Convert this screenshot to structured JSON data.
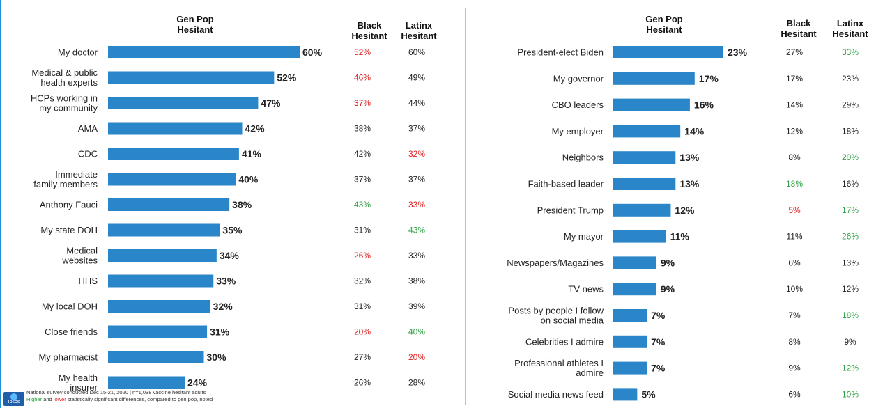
{
  "colors": {
    "bar": "#2a86c8",
    "higher": "#2ea043",
    "lower": "#e02020",
    "neutral": "#222222"
  },
  "headers": {
    "left": {
      "genpop": [
        "Gen Pop",
        "Hesitant"
      ],
      "black": [
        "Black",
        "Hesitant"
      ],
      "latinx": [
        "Latinx",
        "Hesitant"
      ]
    },
    "right": {
      "genpop": [
        "Gen Pop",
        "Hesitant"
      ],
      "black": [
        "Black",
        "Hesitant"
      ],
      "latinx": [
        "Latinx",
        "Hesitant"
      ]
    }
  },
  "footer": {
    "line1": "National survey conducted Dec 15-21, 2020 | n=1,038 vaccine hesitant adults",
    "higher_word": "Higher",
    "and_word": " and ",
    "lower_word": "lower",
    "line2_rest": " statistically significant differences, compared to gen pop, noted",
    "logo_text": "Ipsos"
  },
  "chart_data": [
    {
      "type": "bar",
      "orientation": "horizontal",
      "xlim": [
        0,
        60
      ],
      "categories": [
        [
          "My doctor"
        ],
        [
          "Medical & public",
          "health experts"
        ],
        [
          "HCPs working in",
          "my community"
        ],
        [
          "AMA"
        ],
        [
          "CDC"
        ],
        [
          "Immediate",
          "family members"
        ],
        [
          "Anthony Fauci"
        ],
        [
          "My state DOH"
        ],
        [
          "Medical",
          "websites"
        ],
        [
          "HHS"
        ],
        [
          "My local DOH"
        ],
        [
          "Close friends"
        ],
        [
          "My pharmacist"
        ],
        [
          "My health",
          "insurer"
        ]
      ],
      "series": [
        {
          "name": "Gen Pop Hesitant",
          "values": [
            60,
            52,
            47,
            42,
            41,
            40,
            38,
            35,
            34,
            33,
            32,
            31,
            30,
            24
          ]
        }
      ],
      "columns": {
        "black": {
          "values": [
            52,
            46,
            37,
            38,
            42,
            37,
            43,
            31,
            26,
            32,
            31,
            20,
            27,
            26
          ],
          "status": [
            "lower",
            "lower",
            "lower",
            "neutral",
            "neutral",
            "neutral",
            "higher",
            "neutral",
            "lower",
            "neutral",
            "neutral",
            "lower",
            "neutral",
            "neutral"
          ]
        },
        "latinx": {
          "values": [
            60,
            49,
            44,
            37,
            32,
            37,
            33,
            43,
            33,
            38,
            39,
            40,
            20,
            28
          ],
          "status": [
            "neutral",
            "neutral",
            "neutral",
            "neutral",
            "lower",
            "neutral",
            "lower",
            "higher",
            "neutral",
            "neutral",
            "neutral",
            "higher",
            "lower",
            "neutral"
          ]
        }
      }
    },
    {
      "type": "bar",
      "orientation": "horizontal",
      "xlim": [
        0,
        23
      ],
      "categories": [
        [
          "President-elect Biden"
        ],
        [
          "My governor"
        ],
        [
          "CBO leaders"
        ],
        [
          "My employer"
        ],
        [
          "Neighbors"
        ],
        [
          "Faith-based leader"
        ],
        [
          "President Trump"
        ],
        [
          "My mayor"
        ],
        [
          "Newspapers/Magazines"
        ],
        [
          "TV news"
        ],
        [
          "Posts by people I follow",
          "on social media"
        ],
        [
          "Celebrities I admire"
        ],
        [
          "Professional athletes I",
          "admire"
        ],
        [
          "Social media news feed"
        ]
      ],
      "series": [
        {
          "name": "Gen Pop Hesitant",
          "values": [
            23,
            17,
            16,
            14,
            13,
            13,
            12,
            11,
            9,
            9,
            7,
            7,
            7,
            5
          ]
        }
      ],
      "columns": {
        "black": {
          "values": [
            27,
            17,
            14,
            12,
            8,
            18,
            5,
            11,
            6,
            10,
            7,
            8,
            9,
            6
          ],
          "status": [
            "neutral",
            "neutral",
            "neutral",
            "neutral",
            "neutral",
            "higher",
            "lower",
            "neutral",
            "neutral",
            "neutral",
            "neutral",
            "neutral",
            "neutral",
            "neutral"
          ]
        },
        "latinx": {
          "values": [
            33,
            23,
            29,
            18,
            20,
            16,
            17,
            26,
            13,
            12,
            18,
            9,
            12,
            10
          ],
          "status": [
            "higher",
            "neutral",
            "neutral",
            "neutral",
            "higher",
            "neutral",
            "higher",
            "higher",
            "neutral",
            "neutral",
            "higher",
            "neutral",
            "higher",
            "higher"
          ]
        }
      }
    }
  ]
}
